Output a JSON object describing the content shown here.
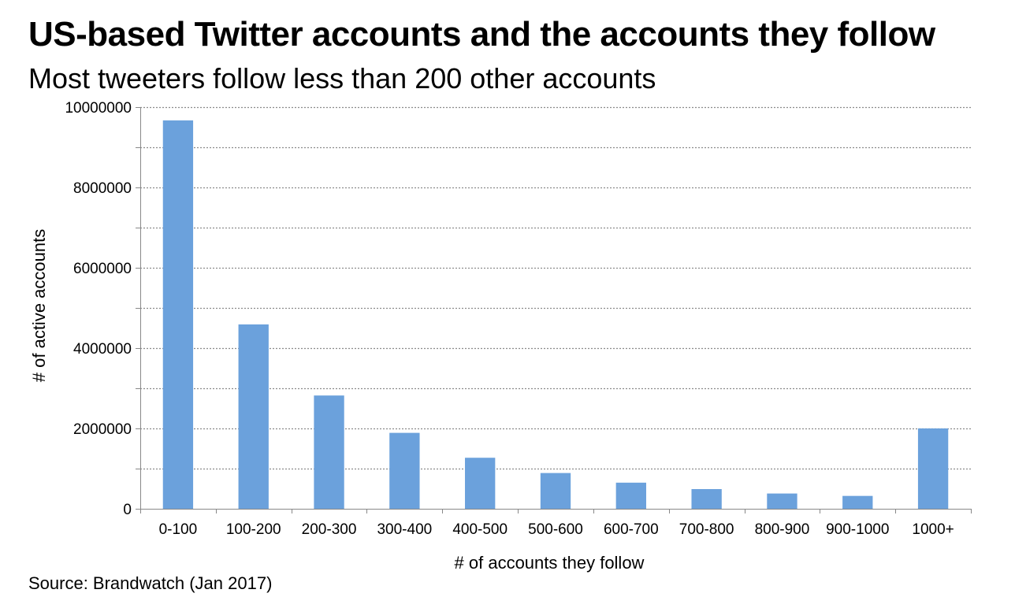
{
  "title": "US-based Twitter accounts and the accounts they follow",
  "subtitle": "Most tweeters follow less than 200 other accounts",
  "source": "Source: Brandwatch (Jan 2017)",
  "colors": {
    "bar": "#6ba1dc",
    "grid": "#8c8c8c",
    "axis": "#888888",
    "text": "#000000"
  },
  "chart_data": {
    "type": "bar",
    "xlabel": "# of accounts they follow",
    "ylabel": "# of active accounts",
    "categories": [
      "0-100",
      "100-200",
      "200-300",
      "300-400",
      "400-500",
      "500-600",
      "600-700",
      "700-800",
      "800-900",
      "900-1000",
      "1000+"
    ],
    "values": [
      9670000,
      4590000,
      2820000,
      1890000,
      1270000,
      890000,
      650000,
      490000,
      380000,
      320000,
      2000000
    ],
    "ylim": [
      0,
      10000000
    ],
    "yticks": [
      0,
      2000000,
      4000000,
      6000000,
      8000000,
      10000000
    ],
    "ytick_labels": [
      "0",
      "2000000",
      "4000000",
      "6000000",
      "8000000",
      "10000000"
    ],
    "grid": true,
    "grid_style": "dotted",
    "legend": "none"
  }
}
